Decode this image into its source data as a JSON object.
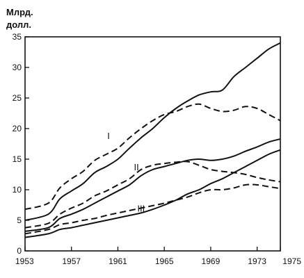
{
  "chart_data": {
    "type": "line",
    "unit_line1": "Млрд.",
    "unit_line2": "долл.",
    "title": "",
    "xlabel": "",
    "ylabel": "",
    "xlim": [
      1953,
      1975
    ],
    "ylim": [
      0,
      35
    ],
    "x_ticks": [
      1953,
      1957,
      1961,
      1965,
      1969,
      1973,
      1975
    ],
    "x_tick_labels": [
      "1953",
      "1957",
      "1961",
      "1965",
      "1969",
      "1973",
      "1975"
    ],
    "y_ticks": [
      0,
      5,
      10,
      15,
      20,
      25,
      30,
      35
    ],
    "y_tick_labels": [
      "0",
      "5",
      "10",
      "15",
      "20",
      "25",
      "30",
      "35"
    ],
    "grid": false,
    "legend": "none",
    "series_labels": [
      {
        "text": "I",
        "x": 1960.2,
        "y": 18.3
      },
      {
        "text": "II",
        "x": 1962.6,
        "y": 13.2
      },
      {
        "text": "III",
        "x": 1963.0,
        "y": 6.4
      }
    ],
    "series": [
      {
        "group": "I",
        "style": "solid",
        "x": [
          1953,
          1955,
          1956,
          1957,
          1958,
          1959,
          1960,
          1961,
          1962,
          1963,
          1964,
          1965,
          1966,
          1967,
          1968,
          1969,
          1970,
          1971,
          1972,
          1973,
          1974,
          1975
        ],
        "y": [
          5.0,
          6.0,
          8.5,
          9.8,
          11.0,
          12.8,
          13.8,
          15.0,
          16.8,
          18.5,
          20.0,
          21.8,
          23.3,
          24.5,
          25.5,
          26.0,
          26.3,
          28.5,
          30.0,
          31.5,
          33.0,
          34.0
        ]
      },
      {
        "group": "I",
        "style": "dashed",
        "x": [
          1953,
          1955,
          1956,
          1957,
          1958,
          1959,
          1960,
          1961,
          1962,
          1963,
          1964,
          1965,
          1966,
          1967,
          1968,
          1969,
          1970,
          1971,
          1972,
          1973,
          1974,
          1975
        ],
        "y": [
          6.8,
          7.8,
          10.3,
          11.8,
          13.0,
          14.8,
          15.8,
          16.8,
          18.5,
          20.0,
          21.3,
          22.3,
          22.8,
          23.6,
          24.0,
          23.3,
          22.8,
          23.0,
          23.6,
          23.3,
          22.3,
          21.3
        ]
      },
      {
        "group": "II",
        "style": "solid",
        "x": [
          1953,
          1955,
          1956,
          1957,
          1958,
          1959,
          1960,
          1961,
          1962,
          1963,
          1964,
          1965,
          1966,
          1967,
          1968,
          1969,
          1970,
          1971,
          1972,
          1973,
          1974,
          1975
        ],
        "y": [
          3.2,
          3.8,
          5.3,
          6.0,
          6.8,
          7.8,
          8.8,
          9.8,
          10.8,
          12.3,
          13.3,
          13.8,
          14.3,
          14.8,
          15.0,
          14.8,
          15.0,
          15.5,
          16.3,
          17.0,
          17.8,
          18.3
        ]
      },
      {
        "group": "II",
        "style": "dashed",
        "x": [
          1953,
          1955,
          1956,
          1957,
          1958,
          1959,
          1960,
          1961,
          1962,
          1963,
          1964,
          1965,
          1966,
          1967,
          1968,
          1969,
          1970,
          1971,
          1972,
          1973,
          1974,
          1975
        ],
        "y": [
          3.8,
          4.5,
          6.0,
          7.0,
          7.8,
          9.0,
          9.8,
          10.8,
          11.8,
          13.3,
          14.0,
          14.3,
          14.5,
          14.6,
          14.0,
          13.3,
          13.0,
          12.8,
          12.5,
          12.0,
          11.6,
          11.3
        ]
      },
      {
        "group": "III",
        "style": "solid",
        "x": [
          1953,
          1955,
          1956,
          1957,
          1958,
          1959,
          1960,
          1961,
          1962,
          1963,
          1964,
          1965,
          1966,
          1967,
          1968,
          1969,
          1970,
          1971,
          1972,
          1973,
          1974,
          1975
        ],
        "y": [
          2.2,
          2.8,
          3.5,
          3.8,
          4.2,
          4.6,
          5.0,
          5.4,
          5.8,
          6.2,
          6.8,
          7.5,
          8.3,
          9.3,
          10.0,
          11.0,
          11.8,
          12.8,
          13.8,
          14.8,
          15.8,
          16.5
        ]
      },
      {
        "group": "III",
        "style": "dashed",
        "x": [
          1953,
          1955,
          1956,
          1957,
          1958,
          1959,
          1960,
          1961,
          1962,
          1963,
          1964,
          1965,
          1966,
          1967,
          1968,
          1969,
          1970,
          1971,
          1972,
          1973,
          1974,
          1975
        ],
        "y": [
          2.8,
          3.5,
          4.3,
          4.6,
          5.0,
          5.3,
          5.8,
          6.2,
          6.6,
          7.0,
          7.4,
          7.8,
          8.3,
          8.8,
          9.5,
          10.0,
          10.0,
          10.3,
          10.8,
          10.8,
          10.5,
          10.2
        ]
      }
    ]
  }
}
